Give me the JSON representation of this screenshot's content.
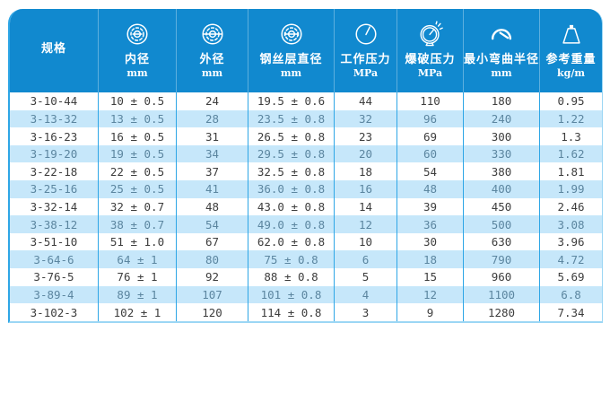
{
  "colors": {
    "header_bg": "#1189cf",
    "row_bg": "#ffffff",
    "row_alt_bg": "#c6e7fa",
    "grid_line": "#2ea6e6",
    "outer_border": "#9bd6f4",
    "text_dark": "#3d3d3d",
    "text_alt": "#5c86a0",
    "header_text": "#ffffff"
  },
  "chart_data": {
    "type": "table",
    "columns": [
      {
        "label": "规格",
        "unit": "",
        "icon": ""
      },
      {
        "label": "内径",
        "unit": "mm",
        "icon": "inner-diameter-icon"
      },
      {
        "label": "外径",
        "unit": "mm",
        "icon": "outer-diameter-icon"
      },
      {
        "label": "钢丝层直径",
        "unit": "mm",
        "icon": "wire-layer-diameter-icon"
      },
      {
        "label": "工作压力",
        "unit": "MPa",
        "icon": "working-pressure-gauge-icon"
      },
      {
        "label": "爆破压力",
        "unit": "MPa",
        "icon": "burst-pressure-gauge-icon"
      },
      {
        "label": "最小弯曲半径",
        "unit": "mm",
        "icon": "bend-radius-arc-icon"
      },
      {
        "label": "参考重量",
        "unit": "kg/m",
        "icon": "weight-icon"
      }
    ],
    "rows": [
      [
        "3-10-44",
        "10 ± 0.5",
        "24",
        "19.5 ± 0.6",
        "44",
        "110",
        "180",
        "0.95"
      ],
      [
        "3-13-32",
        "13 ± 0.5",
        "28",
        "23.5 ± 0.8",
        "32",
        "96",
        "240",
        "1.22"
      ],
      [
        "3-16-23",
        "16 ± 0.5",
        "31",
        "26.5 ± 0.8",
        "23",
        "69",
        "300",
        "1.3"
      ],
      [
        "3-19-20",
        "19 ± 0.5",
        "34",
        "29.5 ± 0.8",
        "20",
        "60",
        "330",
        "1.62"
      ],
      [
        "3-22-18",
        "22 ± 0.5",
        "37",
        "32.5 ± 0.8",
        "18",
        "54",
        "380",
        "1.81"
      ],
      [
        "3-25-16",
        "25 ± 0.5",
        "41",
        "36.0 ± 0.8",
        "16",
        "48",
        "400",
        "1.99"
      ],
      [
        "3-32-14",
        "32 ± 0.7",
        "48",
        "43.0 ± 0.8",
        "14",
        "39",
        "450",
        "2.46"
      ],
      [
        "3-38-12",
        "38 ± 0.7",
        "54",
        "49.0 ± 0.8",
        "12",
        "36",
        "500",
        "3.08"
      ],
      [
        "3-51-10",
        "51 ± 1.0",
        "67",
        "62.0 ± 0.8",
        "10",
        "30",
        "630",
        "3.96"
      ],
      [
        "3-64-6",
        "64 ± 1",
        "80",
        "75 ± 0.8",
        "6",
        "18",
        "790",
        "4.72"
      ],
      [
        "3-76-5",
        "76 ± 1",
        "92",
        "88 ± 0.8",
        "5",
        "15",
        "960",
        "5.69"
      ],
      [
        "3-89-4",
        "89 ± 1",
        "107",
        "101 ± 0.8",
        "4",
        "12",
        "1100",
        "6.8"
      ],
      [
        "3-102-3",
        "102 ± 1",
        "120",
        "114 ± 0.8",
        "3",
        "9",
        "1280",
        "7.34"
      ]
    ]
  }
}
